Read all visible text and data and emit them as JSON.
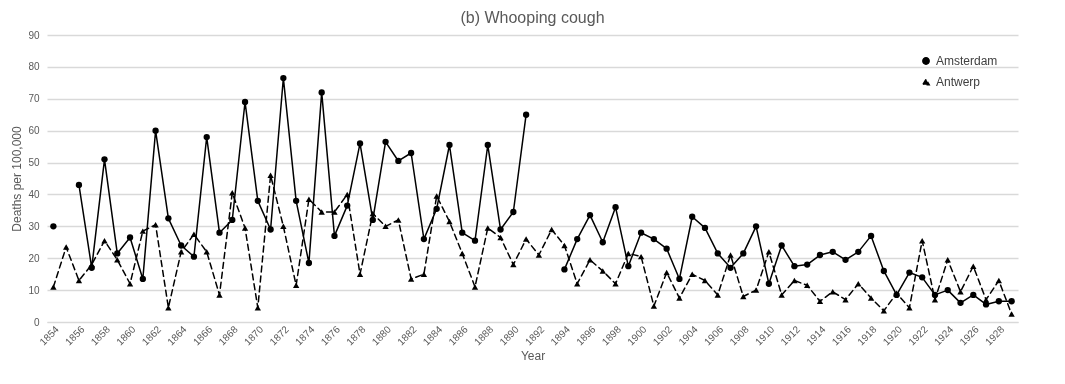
{
  "chart_data": {
    "type": "line",
    "title": "(b) Whooping cough",
    "xlabel": "Year",
    "ylabel": "Deaths per 100,000",
    "categories": [
      "1854",
      null,
      "1856",
      null,
      "1858",
      null,
      "1860",
      null,
      "1862",
      null,
      "1864",
      null,
      "1866",
      null,
      "1868",
      null,
      "1870",
      null,
      "1872",
      null,
      "1874",
      null,
      "1876",
      null,
      "1878",
      null,
      "1880",
      null,
      "1882",
      null,
      "1884",
      null,
      "1886",
      null,
      "1888",
      null,
      "1890",
      null,
      "1892",
      null,
      "1894",
      null,
      "1896",
      null,
      "1898",
      null,
      "1900",
      null,
      "1902",
      null,
      "1904",
      null,
      "1906",
      null,
      "1908",
      null,
      "1910",
      null,
      "1912",
      null,
      "1914",
      null,
      "1916",
      null,
      "1918",
      null,
      "1920",
      null,
      "1922",
      null,
      "1924",
      null,
      "1926",
      null,
      "1928",
      null
    ],
    "series": [
      {
        "name": "Amsterdam",
        "color": "#000000",
        "marker": "circle",
        "line_style": "solid",
        "values": [
          30,
          null,
          43,
          17,
          51,
          21.5,
          26.5,
          13.5,
          60,
          32.5,
          24,
          20.5,
          58,
          28,
          32,
          69,
          38,
          29,
          76.5,
          38,
          18.5,
          72,
          27,
          36.5,
          56,
          32,
          56.5,
          50.5,
          53,
          26,
          35.5,
          55.5,
          28,
          25.5,
          55.5,
          29,
          34.5,
          65,
          null,
          null,
          16.5,
          26,
          33.5,
          25,
          36,
          17.5,
          28,
          26,
          23,
          13.5,
          33,
          29.5,
          21.5,
          17,
          21.5,
          30,
          12,
          24,
          17.5,
          18,
          21,
          22,
          19.5,
          22,
          27,
          16,
          8.5,
          15.5,
          14,
          8.5,
          10,
          6,
          8.5,
          5.5,
          6.5,
          6.5
        ]
      },
      {
        "name": "Antwerp",
        "color": "#000000",
        "marker": "triangle",
        "line_style": "dashed",
        "values": [
          11,
          23.5,
          13,
          18,
          25.5,
          19.5,
          12,
          28.5,
          30.5,
          4.5,
          22,
          27.5,
          22,
          8.5,
          40.5,
          29.5,
          4.5,
          46,
          30,
          11.5,
          38.5,
          34.5,
          34.5,
          40,
          15,
          34,
          30,
          32,
          13.5,
          15,
          39.5,
          31.5,
          21.5,
          11,
          29.5,
          26.5,
          18,
          26,
          21,
          29,
          24,
          12,
          19.5,
          16,
          12,
          21.5,
          20.5,
          5,
          15.5,
          7.5,
          15,
          13,
          8.5,
          21,
          8,
          10,
          22,
          8.5,
          13,
          11.5,
          6.5,
          9.5,
          7,
          12,
          7.5,
          3.5,
          9,
          4.5,
          25.5,
          7,
          19.5,
          9.5,
          17.5,
          7,
          13,
          2.5
        ]
      }
    ],
    "ylim": [
      0,
      90
    ],
    "yticks": [
      0,
      10,
      20,
      30,
      40,
      50,
      60,
      70,
      80,
      90
    ],
    "grid": "y",
    "legend": "top right"
  }
}
